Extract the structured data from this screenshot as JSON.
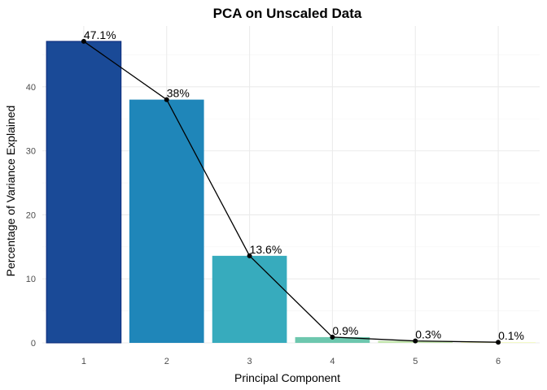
{
  "chart_data": {
    "type": "bar",
    "title": "PCA on Unscaled Data",
    "xlabel": "Principal Component",
    "ylabel": "Percentage of Variance Explained",
    "categories": [
      "1",
      "2",
      "3",
      "4",
      "5",
      "6"
    ],
    "values": [
      47.1,
      38.0,
      13.6,
      0.9,
      0.3,
      0.1
    ],
    "data_labels": [
      "47.1%",
      "38%",
      "13.6%",
      "0.9%",
      "0.3%",
      "0.1%"
    ],
    "bar_colors": [
      "#1a4a97",
      "#1f86b9",
      "#37abbd",
      "#6dc7ae",
      "#c3e6ae",
      "#f2f9b8"
    ],
    "bar_outline_first": "#0b2a7a",
    "line_overlay": {
      "color": "#000000",
      "points": true
    },
    "y_ticks": [
      0,
      10,
      20,
      30,
      40
    ],
    "ylim": [
      0,
      49.5
    ],
    "grid": true,
    "legend": "none"
  }
}
